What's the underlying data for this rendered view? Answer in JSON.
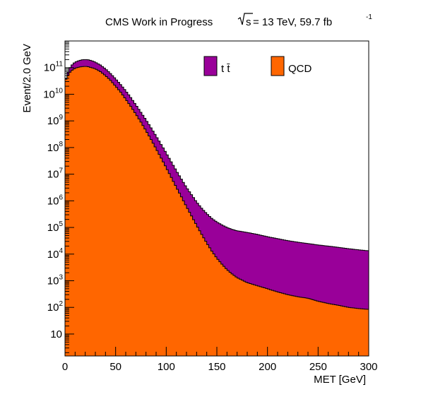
{
  "header": {
    "experiment": "CMS Work in Progress",
    "energy_prefix": "s",
    "energy_suffix": " = 13 TeV, 59.7 fb",
    "lumi_exponent": "-1"
  },
  "chart_data": {
    "type": "area",
    "stacked": true,
    "title": "",
    "xlabel": "MET [GeV]",
    "ylabel": "Event/2.0 GeV",
    "xlim": [
      0,
      300
    ],
    "ylim": [
      1.5,
      1000000000000.0
    ],
    "ylog": true,
    "bin_width": 2.0,
    "x_ticks": [
      0,
      50,
      100,
      150,
      200,
      250,
      300
    ],
    "y_ticks": [
      {
        "value": 10,
        "base": "10",
        "exp": ""
      },
      {
        "value": 100,
        "base": "10",
        "exp": "2"
      },
      {
        "value": 1000,
        "base": "10",
        "exp": "3"
      },
      {
        "value": 10000,
        "base": "10",
        "exp": "4"
      },
      {
        "value": 100000,
        "base": "10",
        "exp": "5"
      },
      {
        "value": 1000000,
        "base": "10",
        "exp": "6"
      },
      {
        "value": 10000000,
        "base": "10",
        "exp": "7"
      },
      {
        "value": 100000000,
        "base": "10",
        "exp": "8"
      },
      {
        "value": 1000000000,
        "base": "10",
        "exp": "9"
      },
      {
        "value": 10000000000,
        "base": "10",
        "exp": "10"
      },
      {
        "value": 100000000000,
        "base": "10",
        "exp": "11"
      }
    ],
    "legend_position": "top",
    "series": [
      {
        "name": "QCD",
        "legend": "QCD",
        "color": "#ff6600",
        "points": [
          [
            0,
            30000000000.0
          ],
          [
            2,
            45000000000.0
          ],
          [
            4,
            60000000000.0
          ],
          [
            6,
            75000000000.0
          ],
          [
            8,
            85000000000.0
          ],
          [
            10,
            95000000000.0
          ],
          [
            14,
            105000000000.0
          ],
          [
            18,
            110000000000.0
          ],
          [
            22,
            110000000000.0
          ],
          [
            26,
            100000000000.0
          ],
          [
            30,
            90000000000.0
          ],
          [
            35,
            70000000000.0
          ],
          [
            40,
            50000000000.0
          ],
          [
            45,
            33000000000.0
          ],
          [
            50,
            20000000000.0
          ],
          [
            55,
            12000000000.0
          ],
          [
            60,
            6500000000.0
          ],
          [
            65,
            3500000000.0
          ],
          [
            70,
            1800000000.0
          ],
          [
            75,
            900000000.0
          ],
          [
            80,
            430000000.0
          ],
          [
            85,
            200000000.0
          ],
          [
            90,
            90000000.0
          ],
          [
            95,
            40000000.0
          ],
          [
            100,
            17500000.0
          ],
          [
            105,
            7500000.0
          ],
          [
            110,
            3200000.0
          ],
          [
            115,
            1400000.0
          ],
          [
            120,
            600000.0
          ],
          [
            125,
            270000.0
          ],
          [
            130,
            120000.0
          ],
          [
            135,
            55000.0
          ],
          [
            140,
            26000.0
          ],
          [
            145,
            13000.0
          ],
          [
            150,
            7000.0
          ],
          [
            155,
            4200.0
          ],
          [
            160,
            2600.0
          ],
          [
            165,
            1800.0
          ],
          [
            170,
            1300.0
          ],
          [
            175,
            1050.0
          ],
          [
            180,
            850.0
          ],
          [
            190,
            650.0
          ],
          [
            200,
            500.0
          ],
          [
            210,
            380.0
          ],
          [
            220,
            300.0
          ],
          [
            230,
            250.0
          ],
          [
            240,
            220.0
          ],
          [
            250,
            170.0
          ],
          [
            260,
            140.0
          ],
          [
            270,
            120.0
          ],
          [
            280,
            100.0
          ],
          [
            290,
            90.0
          ],
          [
            298,
            85.0
          ]
        ]
      },
      {
        "name": "tt",
        "legend": "t t̄",
        "color": "#990099",
        "points": [
          [
            0,
            28000000000.0
          ],
          [
            2,
            55000000000.0
          ],
          [
            4,
            85000000000.0
          ],
          [
            6,
            115000000000.0
          ],
          [
            8,
            140000000000.0
          ],
          [
            10,
            160000000000.0
          ],
          [
            14,
            185000000000.0
          ],
          [
            18,
            200000000000.0
          ],
          [
            22,
            200000000000.0
          ],
          [
            26,
            185000000000.0
          ],
          [
            30,
            160000000000.0
          ],
          [
            35,
            125000000000.0
          ],
          [
            40,
            90000000000.0
          ],
          [
            45,
            60000000000.0
          ],
          [
            50,
            38000000000.0
          ],
          [
            55,
            23000000000.0
          ],
          [
            60,
            13500000000.0
          ],
          [
            65,
            7500000000.0
          ],
          [
            70,
            4000000000.0
          ],
          [
            75,
            2100000000.0
          ],
          [
            80,
            1100000000.0
          ],
          [
            85,
            550000000.0
          ],
          [
            90,
            270000000.0
          ],
          [
            95,
            130000000.0
          ],
          [
            100,
            62000000.0
          ],
          [
            105,
            29000000.0
          ],
          [
            110,
            13500000.0
          ],
          [
            115,
            6500000.0
          ],
          [
            120,
            3200000.0
          ],
          [
            125,
            1700000.0
          ],
          [
            130,
            900000.0
          ],
          [
            135,
            530000.0
          ],
          [
            140,
            330000.0
          ],
          [
            145,
            220000.0
          ],
          [
            150,
            160000.0
          ],
          [
            155,
            125000.0
          ],
          [
            160,
            100000.0
          ],
          [
            165,
            85000.0
          ],
          [
            170,
            75000.0
          ],
          [
            175,
            70000.0
          ],
          [
            180,
            65000.0
          ],
          [
            190,
            55000.0
          ],
          [
            200,
            45000.0
          ],
          [
            210,
            38000.0
          ],
          [
            220,
            32000.0
          ],
          [
            230,
            28000.0
          ],
          [
            240,
            25000.0
          ],
          [
            250,
            22000.0
          ],
          [
            260,
            20000.0
          ],
          [
            270,
            18000.0
          ],
          [
            280,
            16000.0
          ],
          [
            290,
            14500.0
          ],
          [
            298,
            13500.0
          ]
        ]
      }
    ]
  }
}
